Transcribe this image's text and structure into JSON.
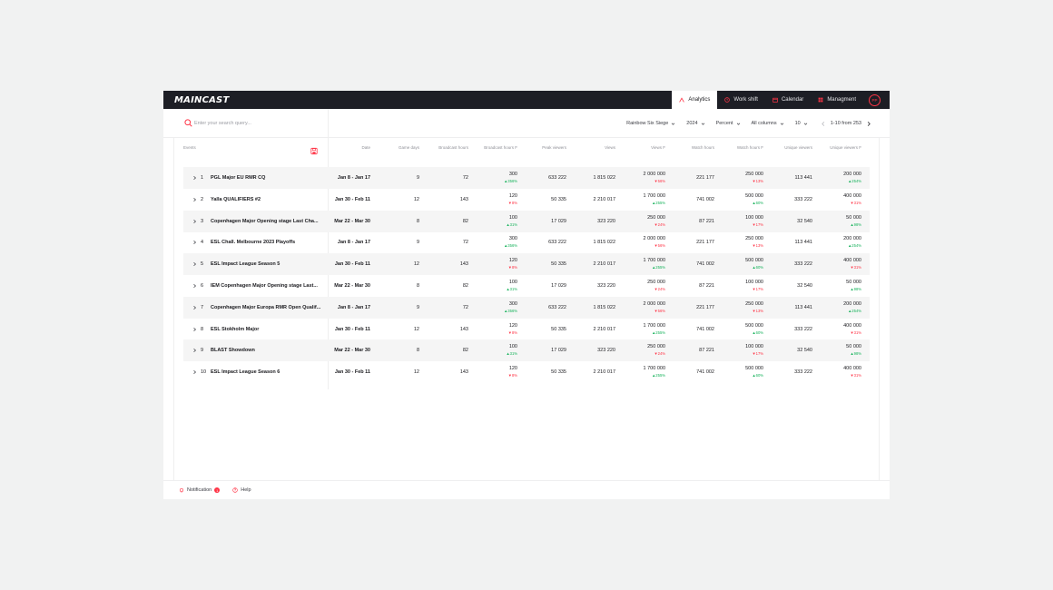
{
  "app": {
    "logo": "MAINCAST"
  },
  "nav": {
    "items": [
      {
        "label": "Analytics",
        "icon": "analytics-icon",
        "active": true
      },
      {
        "label": "Work shift",
        "icon": "clock-icon",
        "active": false
      },
      {
        "label": "Calendar",
        "icon": "calendar-icon",
        "active": false
      },
      {
        "label": "Managment",
        "icon": "grid-icon",
        "active": false
      }
    ],
    "avatar": "PP"
  },
  "search": {
    "placeholder": "Enter your search query..."
  },
  "filters": {
    "game": "Rainbow Six Siege",
    "year": "2024",
    "mode": "Percent",
    "columns": "All columns",
    "page_size": "10",
    "range": "1-10 from 253"
  },
  "table": {
    "columns": [
      "Events",
      "Date",
      "Game days",
      "Broadcast hours",
      "Broadcast hours F",
      "Peak viewers",
      "Views",
      "Views F",
      "Watch hours",
      "Watch hours F",
      "Unique viewers",
      "Unique viewers F"
    ],
    "rows": [
      {
        "n": "1",
        "event": "PGL Major EU RMR CQ",
        "date": "Jan 8 - Jan 17",
        "days": "9",
        "bh": "72",
        "bhf": "300",
        "bhf_d": "356%",
        "bhf_up": true,
        "peak": "633 222",
        "views": "1 815 022",
        "vf": "2 000 000",
        "vf_d": "56%",
        "vf_up": false,
        "wh": "221 177",
        "whf": "250 000",
        "whf_d": "13%",
        "whf_up": false,
        "uv": "113 441",
        "uvf": "200 000",
        "uvf_d": "254%",
        "uvf_up": true
      },
      {
        "n": "2",
        "event": "Yalla QUALIFIERS #2",
        "date": "Jan 30 - Feb 11",
        "days": "12",
        "bh": "143",
        "bhf": "120",
        "bhf_d": "8%",
        "bhf_up": false,
        "peak": "50 335",
        "views": "2 210 017",
        "vf": "1 700 000",
        "vf_d": "255%",
        "vf_up": true,
        "wh": "741 002",
        "whf": "500 000",
        "whf_d": "60%",
        "whf_up": true,
        "uv": "333 222",
        "uvf": "400 000",
        "uvf_d": "31%",
        "uvf_up": false
      },
      {
        "n": "3",
        "event": "Copenhagen Major Opening stage Last Cha...",
        "date": "Mar 22 - Mar 30",
        "days": "8",
        "bh": "82",
        "bhf": "100",
        "bhf_d": "31%",
        "bhf_up": true,
        "peak": "17 029",
        "views": "323 220",
        "vf": "250 000",
        "vf_d": "24%",
        "vf_up": false,
        "wh": "87 221",
        "whf": "100 000",
        "whf_d": "17%",
        "whf_up": false,
        "uv": "32 540",
        "uvf": "50 000",
        "uvf_d": "98%",
        "uvf_up": true
      },
      {
        "n": "4",
        "event": "ESL Chall. Melbourne 2023 Playoffs",
        "date": "Jan 8 - Jan 17",
        "days": "9",
        "bh": "72",
        "bhf": "300",
        "bhf_d": "356%",
        "bhf_up": true,
        "peak": "633 222",
        "views": "1 815 022",
        "vf": "2 000 000",
        "vf_d": "56%",
        "vf_up": false,
        "wh": "221 177",
        "whf": "250 000",
        "whf_d": "13%",
        "whf_up": false,
        "uv": "113 441",
        "uvf": "200 000",
        "uvf_d": "254%",
        "uvf_up": true
      },
      {
        "n": "5",
        "event": "ESL Impact League Season 5",
        "date": "Jan 30 - Feb 11",
        "days": "12",
        "bh": "143",
        "bhf": "120",
        "bhf_d": "8%",
        "bhf_up": false,
        "peak": "50 335",
        "views": "2 210 017",
        "vf": "1 700 000",
        "vf_d": "255%",
        "vf_up": true,
        "wh": "741 002",
        "whf": "500 000",
        "whf_d": "60%",
        "whf_up": true,
        "uv": "333 222",
        "uvf": "400 000",
        "uvf_d": "31%",
        "uvf_up": false
      },
      {
        "n": "6",
        "event": "IEM Copenhagen Major Opening stage Last...",
        "date": "Mar 22 - Mar 30",
        "days": "8",
        "bh": "82",
        "bhf": "100",
        "bhf_d": "31%",
        "bhf_up": true,
        "peak": "17 029",
        "views": "323 220",
        "vf": "250 000",
        "vf_d": "24%",
        "vf_up": false,
        "wh": "87 221",
        "whf": "100 000",
        "whf_d": "17%",
        "whf_up": false,
        "uv": "32 540",
        "uvf": "50 000",
        "uvf_d": "98%",
        "uvf_up": true
      },
      {
        "n": "7",
        "event": "Copenhagen Major Europa RMR Open Qualif...",
        "date": "Jan 8 - Jan 17",
        "days": "9",
        "bh": "72",
        "bhf": "300",
        "bhf_d": "356%",
        "bhf_up": true,
        "peak": "633 222",
        "views": "1 815 022",
        "vf": "2 000 000",
        "vf_d": "56%",
        "vf_up": false,
        "wh": "221 177",
        "whf": "250 000",
        "whf_d": "13%",
        "whf_up": false,
        "uv": "113 441",
        "uvf": "200 000",
        "uvf_d": "254%",
        "uvf_up": true
      },
      {
        "n": "8",
        "event": "ESL Stokholm Major",
        "date": "Jan 30 - Feb 11",
        "days": "12",
        "bh": "143",
        "bhf": "120",
        "bhf_d": "8%",
        "bhf_up": false,
        "peak": "50 335",
        "views": "2 210 017",
        "vf": "1 700 000",
        "vf_d": "255%",
        "vf_up": true,
        "wh": "741 002",
        "whf": "500 000",
        "whf_d": "60%",
        "whf_up": true,
        "uv": "333 222",
        "uvf": "400 000",
        "uvf_d": "31%",
        "uvf_up": false
      },
      {
        "n": "9",
        "event": "BLAST Showdown",
        "date": "Mar 22 - Mar 30",
        "days": "8",
        "bh": "82",
        "bhf": "100",
        "bhf_d": "31%",
        "bhf_up": true,
        "peak": "17 029",
        "views": "323 220",
        "vf": "250 000",
        "vf_d": "24%",
        "vf_up": false,
        "wh": "87 221",
        "whf": "100 000",
        "whf_d": "17%",
        "whf_up": false,
        "uv": "32 540",
        "uvf": "50 000",
        "uvf_d": "98%",
        "uvf_up": true
      },
      {
        "n": "10",
        "event": "ESL Impact League Season 6",
        "date": "Jan 30 - Feb 11",
        "days": "12",
        "bh": "143",
        "bhf": "120",
        "bhf_d": "8%",
        "bhf_up": false,
        "peak": "50 335",
        "views": "2 210 017",
        "vf": "1 700 000",
        "vf_d": "255%",
        "vf_up": true,
        "wh": "741 002",
        "whf": "500 000",
        "whf_d": "60%",
        "whf_up": true,
        "uv": "333 222",
        "uvf": "400 000",
        "uvf_d": "31%",
        "uvf_up": false
      }
    ]
  },
  "footer": {
    "notification": "Notification",
    "notification_count": "1",
    "help": "Help"
  },
  "colors": {
    "accent": "#ff3446",
    "up": "#18b35c",
    "header_bg": "#1d1e25"
  }
}
